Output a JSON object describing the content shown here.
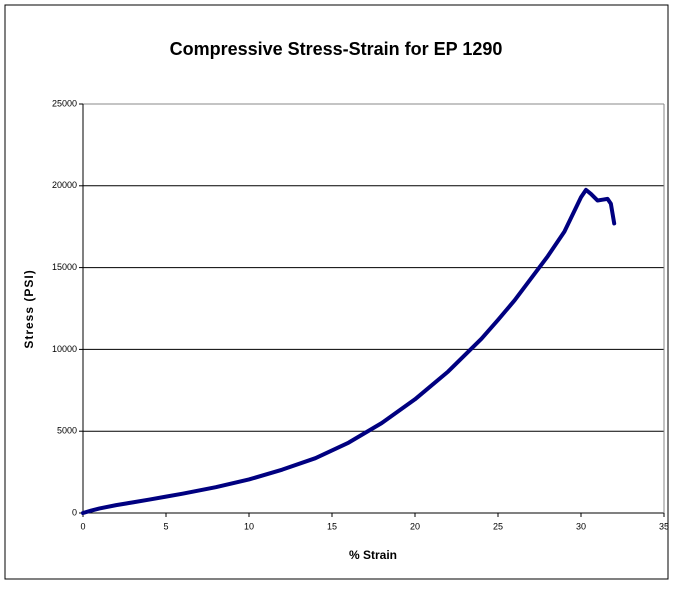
{
  "chart_data": {
    "type": "line",
    "title": "Compressive Stress-Strain for EP 1290",
    "xlabel": "% Strain",
    "ylabel": "Stress (PSI)",
    "x": [
      0,
      0.5,
      1,
      2,
      3,
      4,
      5,
      6,
      8,
      10,
      12,
      14,
      16,
      18,
      20,
      22,
      24,
      25,
      26,
      28,
      29,
      30,
      30.3,
      30.6,
      31,
      31.3,
      31.6,
      31.8,
      32
    ],
    "series": [
      {
        "name": "Stress",
        "color": "#000080",
        "values": [
          0,
          150,
          280,
          480,
          650,
          820,
          1000,
          1180,
          1580,
          2050,
          2650,
          3350,
          4300,
          5500,
          6950,
          8650,
          10650,
          11800,
          13000,
          15700,
          17200,
          19300,
          19750,
          19500,
          19100,
          19150,
          19200,
          18900,
          17700
        ]
      }
    ],
    "xlim": [
      0,
      35
    ],
    "xticks": [
      0,
      5,
      10,
      15,
      20,
      25,
      30,
      35
    ],
    "ylim": [
      0,
      25000
    ],
    "yticks": [
      0,
      5000,
      10000,
      15000,
      20000,
      25000
    ],
    "grid": true
  }
}
